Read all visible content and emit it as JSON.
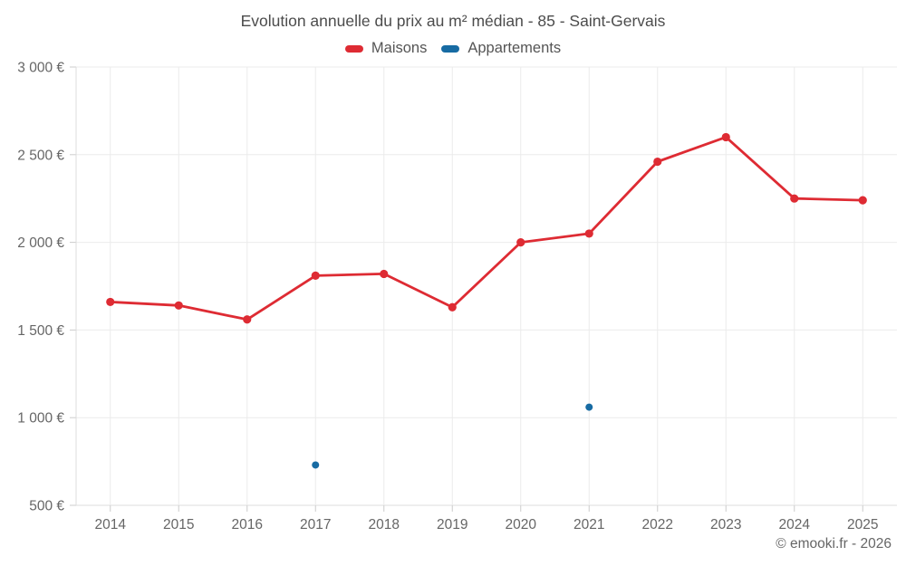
{
  "chart_data": {
    "type": "line",
    "title": "Evolution annuelle du prix au m² médian - 85 - Saint-Gervais",
    "x": [
      "2014",
      "2015",
      "2016",
      "2017",
      "2018",
      "2019",
      "2020",
      "2021",
      "2022",
      "2023",
      "2024",
      "2025"
    ],
    "series": [
      {
        "name": "Maisons",
        "color": "#de2b33",
        "values": [
          1660,
          1640,
          1560,
          1810,
          1820,
          1630,
          2000,
          2050,
          2460,
          2600,
          2250,
          2240
        ]
      },
      {
        "name": "Appartements",
        "color": "#176ba3",
        "values": [
          null,
          null,
          null,
          730,
          null,
          null,
          null,
          1060,
          null,
          null,
          null,
          null
        ]
      }
    ],
    "ylim": [
      500,
      3000
    ],
    "yticks": [
      {
        "value": 500,
        "label": "500 €"
      },
      {
        "value": 1000,
        "label": "1 000 €"
      },
      {
        "value": 1500,
        "label": "1 500 €"
      },
      {
        "value": 2000,
        "label": "2 000 €"
      },
      {
        "value": 2500,
        "label": "2 500 €"
      },
      {
        "value": 3000,
        "label": "3 000 €"
      }
    ],
    "grid": true,
    "legend_position": "top",
    "colors": {
      "grid": "#ebebeb",
      "axis": "#dddddd",
      "tick": "#cccccc",
      "tick_label": "#666666",
      "title": "#4c4c4c",
      "legend_text": "#555555"
    }
  },
  "footer": {
    "credit": "© emooki.fr - 2026"
  }
}
